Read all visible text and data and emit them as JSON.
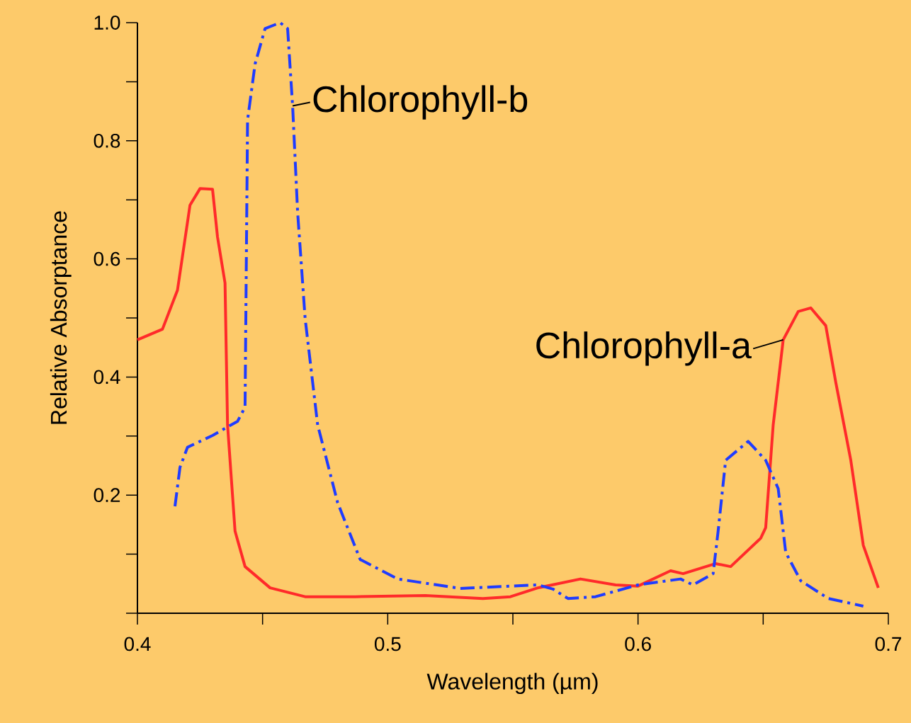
{
  "chart_data": {
    "type": "line",
    "xlabel": "Wavelength (µm)",
    "ylabel": "Relative Absorptance",
    "xlim": [
      0.4,
      0.7
    ],
    "ylim": [
      0,
      1.0
    ],
    "xticks": [
      0.4,
      {
        "value": 0.45,
        "label": null
      },
      0.5,
      {
        "value": 0.55,
        "label": null
      },
      0.6,
      {
        "value": 0.65,
        "label": null
      },
      0.7
    ],
    "yticks": [
      {
        "value": 0,
        "label": null
      },
      {
        "value": 0.1,
        "label": null
      },
      0.2,
      {
        "value": 0.3,
        "label": null
      },
      0.4,
      {
        "value": 0.5,
        "label": null
      },
      0.6,
      {
        "value": 0.7,
        "label": null
      },
      0.8,
      {
        "value": 0.9,
        "label": null
      },
      {
        "value": 1.0,
        "label": "1.0"
      }
    ],
    "grid": false,
    "marker": "none",
    "series": [
      {
        "name": "Chlorophyll-a",
        "color": "#ff2a2a",
        "line_style": "solid",
        "x": [
          0.4,
          0.41,
          0.416,
          0.421,
          0.425,
          0.43,
          0.432,
          0.435,
          0.436,
          0.439,
          0.443,
          0.453,
          0.467,
          0.487,
          0.515,
          0.538,
          0.549,
          0.56,
          0.577,
          0.591,
          0.6,
          0.613,
          0.618,
          0.631,
          0.637,
          0.649,
          0.651,
          0.654,
          0.658,
          0.664,
          0.669,
          0.675,
          0.679,
          0.685,
          0.69,
          0.696
        ],
        "values": [
          0.463,
          0.481,
          0.547,
          0.691,
          0.719,
          0.718,
          0.637,
          0.559,
          0.319,
          0.139,
          0.079,
          0.043,
          0.028,
          0.028,
          0.03,
          0.025,
          0.028,
          0.043,
          0.058,
          0.048,
          0.046,
          0.072,
          0.067,
          0.084,
          0.079,
          0.127,
          0.145,
          0.319,
          0.463,
          0.511,
          0.517,
          0.487,
          0.391,
          0.259,
          0.115,
          0.043
        ]
      },
      {
        "name": "Chlorophyll-b",
        "color": "#1f3cff",
        "line_style": "dashdot",
        "x": [
          0.415,
          0.417,
          0.42,
          0.43,
          0.44,
          0.443,
          0.444,
          0.447,
          0.451,
          0.457,
          0.46,
          0.462,
          0.464,
          0.467,
          0.472,
          0.48,
          0.489,
          0.504,
          0.529,
          0.56,
          0.566,
          0.572,
          0.583,
          0.6,
          0.617,
          0.622,
          0.63,
          0.632,
          0.635,
          0.644,
          0.651,
          0.656,
          0.659,
          0.665,
          0.676,
          0.69
        ],
        "values": [
          0.181,
          0.247,
          0.281,
          0.301,
          0.325,
          0.349,
          0.835,
          0.93,
          0.99,
          1.0,
          0.99,
          0.859,
          0.679,
          0.499,
          0.319,
          0.187,
          0.091,
          0.058,
          0.042,
          0.048,
          0.041,
          0.025,
          0.028,
          0.048,
          0.058,
          0.048,
          0.067,
          0.139,
          0.259,
          0.291,
          0.259,
          0.211,
          0.103,
          0.055,
          0.025,
          0.012
        ]
      }
    ]
  }
}
